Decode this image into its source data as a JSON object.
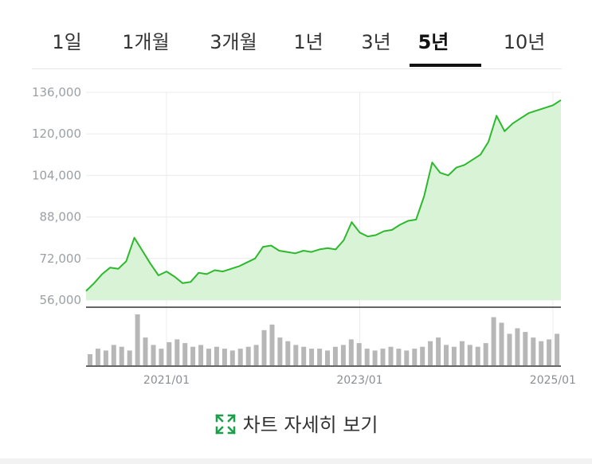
{
  "tabs": [
    {
      "label": "1일"
    },
    {
      "label": "1개월"
    },
    {
      "label": "3개월"
    },
    {
      "label": "1년"
    },
    {
      "label": "3년"
    },
    {
      "label": "5년",
      "active": true
    },
    {
      "label": "10년"
    }
  ],
  "detail_link": {
    "label": "차트 자세히 보기",
    "icon": "expand-icon"
  },
  "colors": {
    "line": "#2db92d",
    "fill": "#d9f3d6",
    "accent": "#1aa04b",
    "volume": "#b7b7b7"
  },
  "chart_data": {
    "type": "area",
    "title": "",
    "xlabel": "",
    "ylabel": "",
    "ylim": [
      56000,
      136000
    ],
    "yticks": [
      56000,
      72000,
      88000,
      104000,
      120000,
      136000
    ],
    "ytick_labels": [
      "56,000",
      "72,000",
      "88,000",
      "104,000",
      "120,000",
      "136,000"
    ],
    "xticks": [
      "2021/01",
      "2023/01",
      "2025/01"
    ],
    "xlim": [
      "2020-03",
      "2025-02"
    ],
    "grid": true,
    "price_series": {
      "name": "",
      "x": [
        "2020-03",
        "2020-04",
        "2020-05",
        "2020-06",
        "2020-07",
        "2020-08",
        "2020-09",
        "2020-10",
        "2020-11",
        "2020-12",
        "2021-01",
        "2021-02",
        "2021-03",
        "2021-04",
        "2021-05",
        "2021-06",
        "2021-07",
        "2021-08",
        "2021-09",
        "2021-10",
        "2021-11",
        "2021-12",
        "2022-01",
        "2022-02",
        "2022-03",
        "2022-04",
        "2022-05",
        "2022-06",
        "2022-07",
        "2022-08",
        "2022-09",
        "2022-10",
        "2022-11",
        "2022-12",
        "2023-01",
        "2023-02",
        "2023-03",
        "2023-04",
        "2023-05",
        "2023-06",
        "2023-07",
        "2023-08",
        "2023-09",
        "2023-10",
        "2023-11",
        "2023-12",
        "2024-01",
        "2024-02",
        "2024-03",
        "2024-04",
        "2024-05",
        "2024-06",
        "2024-07",
        "2024-08",
        "2024-09",
        "2024-10",
        "2024-11",
        "2024-12",
        "2025-01",
        "2025-02"
      ],
      "values": [
        59500,
        62500,
        66000,
        68500,
        68000,
        71000,
        80000,
        75000,
        70000,
        65500,
        67000,
        65000,
        62500,
        63000,
        66500,
        66000,
        67500,
        67000,
        68000,
        69000,
        70500,
        72000,
        76500,
        77000,
        75000,
        74500,
        74000,
        75000,
        74500,
        75500,
        76000,
        75500,
        79000,
        86000,
        82000,
        80500,
        81000,
        82500,
        83000,
        85000,
        86500,
        87000,
        96000,
        109000,
        105000,
        104000,
        107000,
        108000,
        110000,
        112000,
        117000,
        127000,
        121000,
        124000,
        126000,
        128000,
        129000,
        130000,
        131000,
        133000
      ]
    },
    "volume_series": {
      "name": "",
      "values": [
        12,
        18,
        16,
        22,
        20,
        16,
        55,
        30,
        22,
        18,
        25,
        28,
        24,
        20,
        22,
        18,
        20,
        18,
        16,
        18,
        20,
        22,
        38,
        44,
        30,
        26,
        22,
        20,
        18,
        18,
        16,
        20,
        22,
        28,
        24,
        18,
        16,
        18,
        20,
        18,
        16,
        18,
        20,
        26,
        30,
        22,
        20,
        26,
        22,
        20,
        24,
        52,
        46,
        34,
        40,
        36,
        30,
        26,
        28,
        34
      ]
    }
  }
}
